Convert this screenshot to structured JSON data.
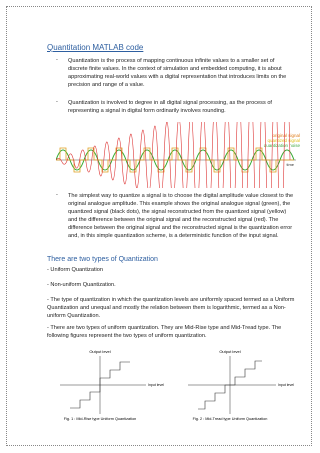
{
  "header": {
    "title": "Quantitation MATLAB code"
  },
  "bullets": [
    "Quantization is the process of mapping continuous infinite values to a smaller set of discrete finite values. In the context of simulation and embedded computing, it is about approximating real-world values with a digital representation that introduces limits on the precision and range of a value.",
    "Quantization is involved to degree in all digital signal processing, as the process of representing a signal in digital form ordinarily involves rounding."
  ],
  "figure": {
    "legend": [
      "original signal",
      "quantized signal",
      "quantization noise"
    ],
    "axis_label": "time"
  },
  "bullet3": "The simplest way to quantize a signal is to choose the digital amplitude value closest to the original analogue amplitude. This example shows the original analogue signal (green), the quantized signal (black dots), the signal reconstructed from the quantized signal (yellow) and the difference between the original signal and the reconstructed signal (red). The difference between the original signal and the reconstructed signal is the quantization error and, in this simple quantization scheme, is a deterministic function of the input signal.",
  "section": {
    "heading": "There are two types of Quantization",
    "items": [
      "- Uniform Quantization",
      "- Non-uniform Quantization."
    ],
    "paragraphs": [
      "- The type of quantization in which the quantization levels are uniformly spaced termed as a Uniform Quantization and unequal and mostly the relation between them is logarithmic, termed as a Non-uniform Quantization.",
      "- There are two types of uniform quantization. They are Mid-Rise type and Mid-Tread type. The following figures represent the two types of uniform quantization."
    ]
  },
  "figures": [
    {
      "output_label": "Output level",
      "input_label": "Input level",
      "caption": "Fig. 1 : Mid-Rise type Uniform Quantization"
    },
    {
      "output_label": "Output level",
      "input_label": "Input level",
      "caption": "Fig. 2 : Mid-Tread type Uniform Quantization"
    }
  ]
}
